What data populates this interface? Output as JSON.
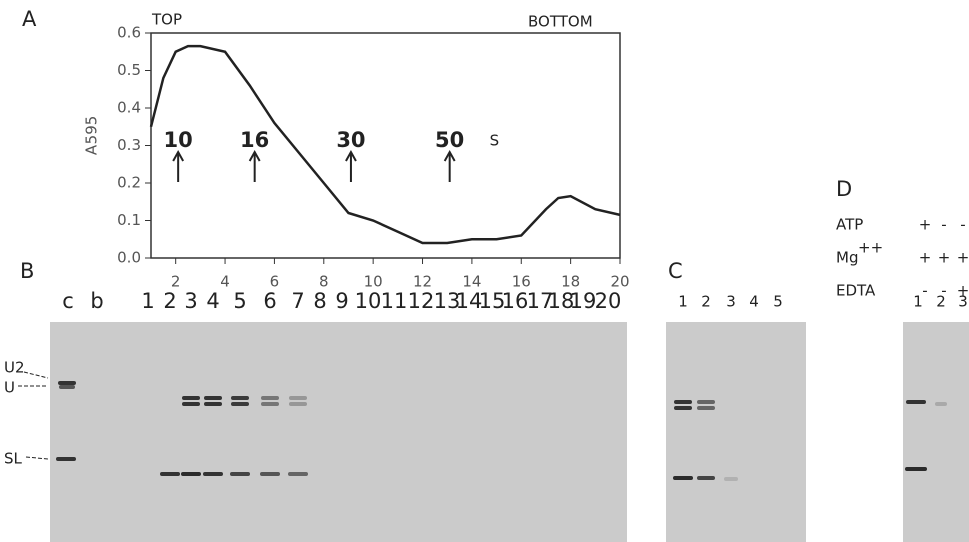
{
  "chart_data": {
    "type": "line",
    "panel": "A",
    "ylabel": "A",
    "ylabel_sub": "595",
    "top_label": "TOP",
    "bottom_label": "BOTTOM",
    "x": [
      1,
      1.5,
      2,
      2.5,
      3,
      4,
      5,
      6,
      7,
      8,
      9,
      10,
      11,
      12,
      13,
      14,
      15,
      16,
      17,
      17.5,
      18,
      19,
      20
    ],
    "values": [
      0.35,
      0.48,
      0.55,
      0.565,
      0.565,
      0.55,
      0.46,
      0.36,
      0.28,
      0.2,
      0.12,
      0.1,
      0.07,
      0.04,
      0.04,
      0.05,
      0.05,
      0.06,
      0.13,
      0.16,
      0.165,
      0.13,
      0.115
    ],
    "color": "#222",
    "xlim": [
      1,
      20
    ],
    "xticks": [
      2,
      4,
      6,
      8,
      10,
      12,
      14,
      16,
      18,
      20
    ],
    "ylim": [
      0,
      0.6
    ],
    "yticks": [
      {
        "value": 0,
        "label": "0.0"
      },
      0.1,
      0.2,
      0.3,
      0.4,
      0.5,
      0.6
    ],
    "markers": [
      {
        "label": "10",
        "x": 2.1
      },
      {
        "label": "16",
        "x": 5.2
      },
      {
        "label": "30",
        "x": 9.1
      },
      {
        "label": "50",
        "x": 13.1
      }
    ],
    "marker_unit": "S"
  },
  "panel_b": {
    "label": "B",
    "lanes": [
      "c",
      "b",
      "1",
      "2",
      "3",
      "4",
      "5",
      "6",
      "7",
      "8",
      "9",
      "10",
      "11",
      "12",
      "13",
      "14",
      "15",
      "16",
      "17",
      "18",
      "19",
      "20"
    ],
    "band_labels": [
      "U2",
      "U",
      "SL"
    ]
  },
  "panel_c": {
    "label": "C",
    "lanes": [
      "1",
      "2",
      "3",
      "4",
      "5"
    ]
  },
  "panel_d": {
    "label": "D",
    "conditions": [
      {
        "name": "ATP",
        "signs": [
          "+",
          "-",
          "-"
        ]
      },
      {
        "name": "Mg",
        "sup": "++",
        "signs": [
          "+",
          "+",
          "+"
        ]
      },
      {
        "name": "EDTA",
        "signs": [
          "-",
          "-",
          "+"
        ]
      }
    ],
    "lanes": [
      "1",
      "2",
      "3"
    ]
  }
}
